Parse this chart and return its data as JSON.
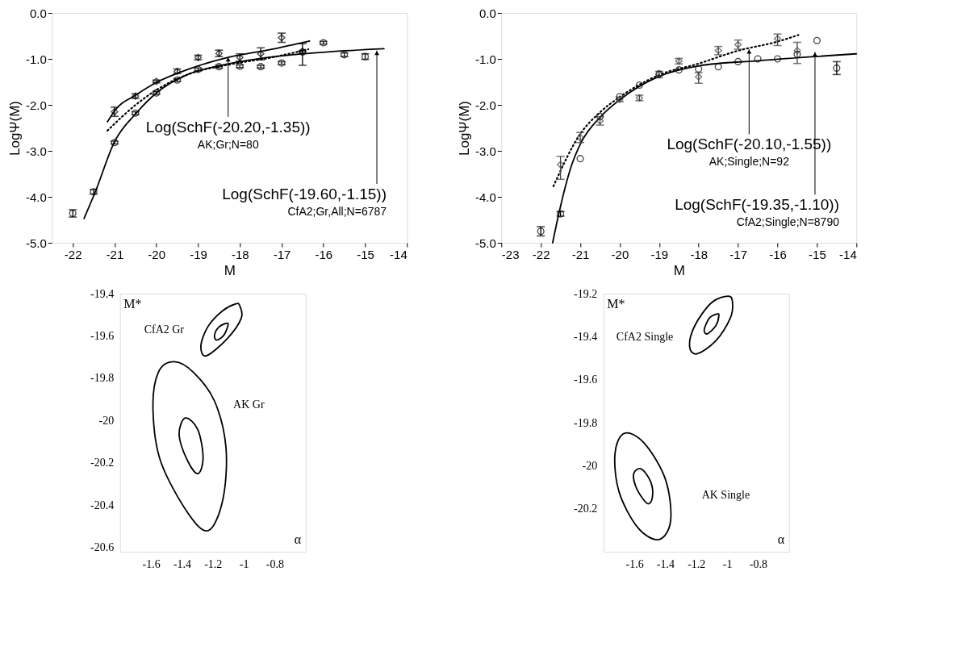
{
  "chart_data": [
    {
      "type": "scatter",
      "xlabel": "M",
      "ylabel": "LogΨ(M)",
      "xlim": [
        -22.5,
        -14
      ],
      "ylim": [
        -5,
        0
      ],
      "xticks": [
        -22,
        -21,
        -20,
        -19,
        -18,
        -17,
        -16,
        -15,
        -14
      ],
      "yticks": [
        {
          "value": 0,
          "label": "0.0"
        },
        {
          "value": -1,
          "label": "-1.0"
        },
        {
          "value": -2,
          "label": "-2.0"
        },
        {
          "value": -3,
          "label": "-3.0"
        },
        {
          "value": -4,
          "label": "-4.0"
        },
        {
          "value": -5,
          "label": "-5.0"
        }
      ],
      "series": [
        {
          "marker": "circle",
          "color": "#000000",
          "x": [
            -22,
            -21.5,
            -21,
            -20.5,
            -20,
            -19.5,
            -19,
            -18.5,
            -18,
            -17.5,
            -17,
            -16.5,
            -16,
            -15.5,
            -15
          ],
          "values": [
            -4.36,
            -3.89,
            -2.82,
            -2.18,
            -1.74,
            -1.46,
            -1.23,
            -1.17,
            -1.16,
            -1.17,
            -1.09,
            -0.85,
            -0.65,
            -0.91,
            -0.95
          ],
          "errors": [
            0.08,
            0.05,
            0.03,
            0.03,
            0.03,
            0.03,
            0.03,
            0.03,
            0.03,
            0.03,
            0.03,
            0.03,
            0.03,
            0.04,
            0.06
          ]
        },
        {
          "marker": "diamond",
          "color": "#000000",
          "x": [
            -21,
            -20.5,
            -20,
            -19.5,
            -19,
            -18.5,
            -18,
            -17.5,
            -17,
            -16.5
          ],
          "values": [
            -2.15,
            -1.81,
            -1.49,
            -1.27,
            -0.97,
            -0.88,
            -0.97,
            -0.89,
            -0.54,
            -0.84
          ],
          "errors": [
            0.1,
            0.05,
            0.03,
            0.05,
            0.05,
            0.07,
            0.08,
            0.13,
            0.1,
            [
              -1.14,
              -0.67
            ]
          ]
        },
        {
          "type": "line",
          "line_style": "solid",
          "color": "#000000",
          "x": [
            -21.73,
            -21.46,
            -21,
            -20.48,
            -19.97,
            -19.25,
            -18.49,
            -17.24,
            -15.9,
            -14.55
          ],
          "values": [
            -4.47,
            -3.89,
            -2.8,
            -2.18,
            -1.72,
            -1.34,
            -1.15,
            -0.96,
            -0.85,
            -0.78
          ]
        },
        {
          "type": "line",
          "line_style": "solid",
          "color": "#000000",
          "x": [
            -21.17,
            -21,
            -20.48,
            -19.97,
            -19.25,
            -18.24,
            -17.24,
            -16.33
          ],
          "values": [
            -2.37,
            -2.13,
            -1.78,
            -1.5,
            -1.23,
            -0.96,
            -0.79,
            -0.61
          ]
        },
        {
          "type": "line",
          "line_style": "dotted",
          "color": "#000000",
          "x": [
            -21.17,
            -20.48,
            -19.97,
            -19.25,
            -18.24,
            -17.24,
            -16.36
          ],
          "values": [
            -2.56,
            -1.99,
            -1.66,
            -1.34,
            -1.12,
            -0.97,
            -0.79
          ]
        }
      ],
      "annotations": [
        {
          "text": "Log(SchF(-20.20,-1.35))\nAK;Gr;N=80",
          "x": -18.28,
          "y": -0.96
        },
        {
          "text": "Log(SchF(-19.60,-1.15))\nCfA2;Gr,All;N=6787",
          "x": -14.72,
          "y": -0.82
        }
      ]
    },
    {
      "type": "scatter",
      "xlabel": "M",
      "ylabel": "LogΨ(M)",
      "xlim": [
        -23,
        -14
      ],
      "ylim": [
        -5,
        0
      ],
      "xticks": [
        -23,
        -22,
        -21,
        -20,
        -19,
        -18,
        -17,
        -16,
        -15,
        -14
      ],
      "yticks": [
        {
          "value": 0,
          "label": "0.0"
        },
        {
          "value": -1,
          "label": "-1.0"
        },
        {
          "value": -2,
          "label": "-2.0"
        },
        {
          "value": -3,
          "label": "-3.0"
        },
        {
          "value": -4,
          "label": "-4.0"
        },
        {
          "value": -5,
          "label": "-5.0"
        }
      ],
      "series": [
        {
          "marker": "circle",
          "color": "#000000",
          "x": [
            -22,
            -21.5,
            -21,
            -20.5,
            -20,
            -19.5,
            -19,
            -18.5,
            -18,
            -17.5,
            -17,
            -16.5,
            -16,
            -15.5,
            -15,
            -14.5
          ],
          "values": [
            -4.75,
            -4.37,
            -3.17,
            -2.25,
            -1.82,
            -1.57,
            -1.33,
            -1.24,
            -1.22,
            -1.17,
            -1.06,
            -1.0,
            -1.0,
            -0.9,
            -0.6,
            -1.2
          ],
          "errors": [
            0.1,
            0.05,
            null,
            null,
            null,
            null,
            null,
            null,
            null,
            null,
            null,
            null,
            null,
            null,
            null,
            0.14
          ]
        },
        {
          "marker": "diamond",
          "color": "#444444",
          "x": [
            -21.5,
            -21,
            -20.5,
            -20,
            -19.5,
            -19,
            -18.5,
            -18,
            -17.5,
            -17,
            -16.5,
            -16,
            -15.5
          ],
          "values": [
            -3.3,
            -2.71,
            -2.35,
            -1.88,
            -1.85,
            -1.34,
            -1.05,
            -1.39,
            -0.82,
            -0.69,
            null,
            -0.56,
            -0.82
          ],
          "errors": [
            [
              -3.62,
              -3.12
            ],
            0.11,
            0.09,
            0.05,
            0.06,
            0.07,
            0.06,
            [
              -1.53,
              -1.3
            ],
            0.09,
            0.1,
            null,
            [
              -0.71,
              -0.46
            ],
            [
              -1.1,
              -0.64
            ]
          ]
        },
        {
          "type": "line",
          "line_style": "solid",
          "color": "#000000",
          "x": [
            -21.7,
            -21.57,
            -21.21,
            -20.99,
            -20.51,
            -20.0,
            -19.0,
            -17.99,
            -16.49,
            -14.0
          ],
          "values": [
            -5.0,
            -4.47,
            -3.29,
            -2.84,
            -2.28,
            -1.89,
            -1.38,
            -1.15,
            -1.04,
            -0.89
          ]
        },
        {
          "type": "line",
          "line_style": "dotted",
          "color": "#000000",
          "x": [
            -21.68,
            -20.99,
            -20.51,
            -20.0,
            -19.0,
            -17.99,
            -16.99,
            -15.98,
            -15.47
          ],
          "values": [
            -3.77,
            -2.62,
            -2.17,
            -1.83,
            -1.35,
            -1.1,
            -0.82,
            -0.62,
            -0.48
          ]
        }
      ],
      "annotations": [
        {
          "text": "Log(SchF(-20.10,-1.55))\nAK;Single;N=92",
          "x": -16.72,
          "y": -0.79
        },
        {
          "text": "Log(SchF(-19.35,-1.10))\nCfA2;Single;N=8790",
          "x": -15.05,
          "y": -0.85
        }
      ]
    },
    {
      "type": "line",
      "xlabel": "α",
      "ylabel": "M*",
      "xlim": [
        -1.8,
        -0.6
      ],
      "ylim": [
        -20.62,
        -19.4
      ],
      "xticks": [
        -1.6,
        -1.4,
        -1.2,
        -1,
        -0.8
      ],
      "yticks": [
        -19.4,
        -19.6,
        -19.8,
        -20,
        -20.2,
        -20.4,
        -20.6
      ],
      "annotations": [
        "CfA2 Gr",
        "AK Gr"
      ]
    },
    {
      "type": "line",
      "xlabel": "α",
      "ylabel": "M*",
      "xlim": [
        -1.8,
        -0.6
      ],
      "ylim": [
        -20.4,
        -19.2
      ],
      "xticks": [
        -1.6,
        -1.4,
        -1.2,
        -1,
        -0.8
      ],
      "yticks": [
        -19.2,
        -19.4,
        -19.6,
        -19.8,
        -20,
        -20.2
      ],
      "annotations": [
        "CfA2 Single",
        "AK Single"
      ]
    }
  ]
}
